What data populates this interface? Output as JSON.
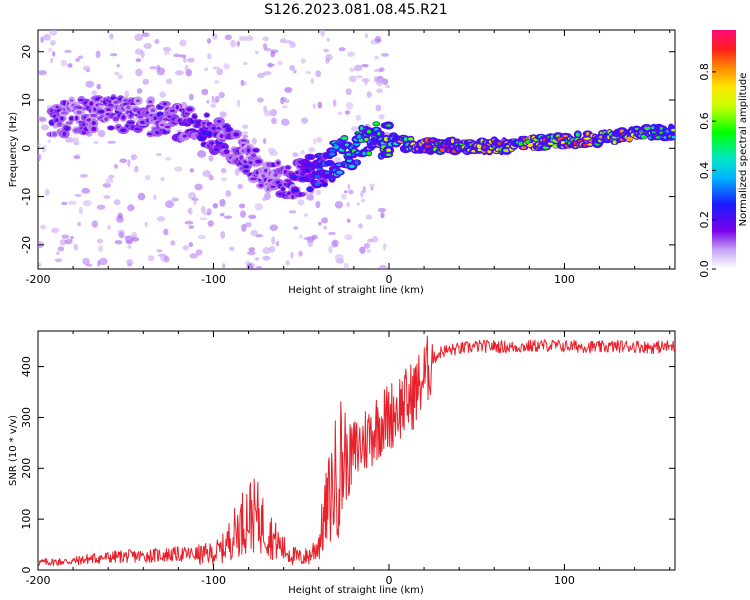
{
  "title": "S126.2023.081.08.45.R21",
  "colors": {
    "snr_line": "#e8202a",
    "axis": "#000000",
    "background": "#ffffff"
  },
  "chart_data": [
    {
      "type": "heatmap",
      "name": "doppler-spectrogram",
      "xlabel": "Height of straight line (km)",
      "ylabel": "Frequency (Hz)",
      "xlim": [
        -200,
        163
      ],
      "ylim": [
        -25,
        24.5
      ],
      "x_ticks": [
        -200,
        -100,
        0,
        100
      ],
      "x_tick_labels": [
        "-200",
        "-100",
        "0",
        "100"
      ],
      "y_ticks": [
        20,
        10,
        0,
        -10,
        -20
      ],
      "y_tick_labels": [
        "20",
        "10",
        "0",
        "-10",
        "-20"
      ],
      "colorbar": {
        "label": "Normalized spectral amplitude",
        "range": [
          0,
          0.97
        ],
        "ticks": [
          0.0,
          0.2,
          0.4,
          0.6,
          0.8
        ],
        "tick_labels": [
          "0.0",
          "0.2",
          "0.4",
          "0.6",
          "0.8"
        ]
      },
      "ridge": {
        "x": [
          -190,
          -170,
          -150,
          -130,
          -110,
          -95,
          -85,
          -75,
          -65,
          -55,
          -45,
          -38,
          -30,
          -20,
          -10,
          0,
          10,
          20,
          40,
          60,
          80,
          100,
          120,
          140,
          163
        ],
        "y": [
          6,
          7,
          7,
          6,
          5,
          2,
          -1,
          -4,
          -6,
          -7,
          -5,
          -5,
          -2,
          0,
          2,
          1.5,
          1,
          0.5,
          0.5,
          0.5,
          1,
          1.5,
          2,
          3,
          3.5
        ],
        "amplitude": [
          0.2,
          0.2,
          0.2,
          0.22,
          0.25,
          0.25,
          0.2,
          0.2,
          0.2,
          0.25,
          0.3,
          0.35,
          0.45,
          0.55,
          0.6,
          0.7,
          0.8,
          0.85,
          0.9,
          0.85,
          0.8,
          0.85,
          0.85,
          0.75,
          0.6
        ]
      }
    },
    {
      "type": "line",
      "name": "snr",
      "xlabel": "Height of straight line (km)",
      "ylabel": "SNR (10 * v/v)",
      "xlim": [
        -200,
        163
      ],
      "ylim": [
        0,
        470
      ],
      "x_ticks": [
        -200,
        -100,
        0,
        100
      ],
      "x_tick_labels": [
        "-200",
        "-100",
        "0",
        "100"
      ],
      "y_ticks": [
        0,
        100,
        200,
        300,
        400
      ],
      "y_tick_labels": [
        "0",
        "100",
        "200",
        "300",
        "400"
      ],
      "series": [
        {
          "name": "SNR",
          "x": [
            -200,
            -190,
            -180,
            -170,
            -160,
            -150,
            -140,
            -130,
            -120,
            -110,
            -100,
            -95,
            -90,
            -85,
            -80,
            -75,
            -70,
            -65,
            -60,
            -55,
            -50,
            -45,
            -40,
            -35,
            -30,
            -25,
            -20,
            -15,
            -10,
            -5,
            0,
            5,
            10,
            15,
            20,
            25,
            30,
            40,
            50,
            60,
            70,
            80,
            90,
            100,
            110,
            120,
            130,
            140,
            150,
            163
          ],
          "y": [
            12,
            13,
            14,
            18,
            20,
            22,
            22,
            24,
            25,
            25,
            28,
            35,
            55,
            75,
            95,
            90,
            70,
            50,
            35,
            25,
            20,
            25,
            45,
            110,
            160,
            200,
            230,
            250,
            270,
            290,
            300,
            320,
            330,
            350,
            380,
            415,
            430,
            435,
            440,
            440,
            438,
            440,
            442,
            440,
            440,
            438,
            440,
            440,
            438,
            440
          ]
        }
      ]
    }
  ]
}
